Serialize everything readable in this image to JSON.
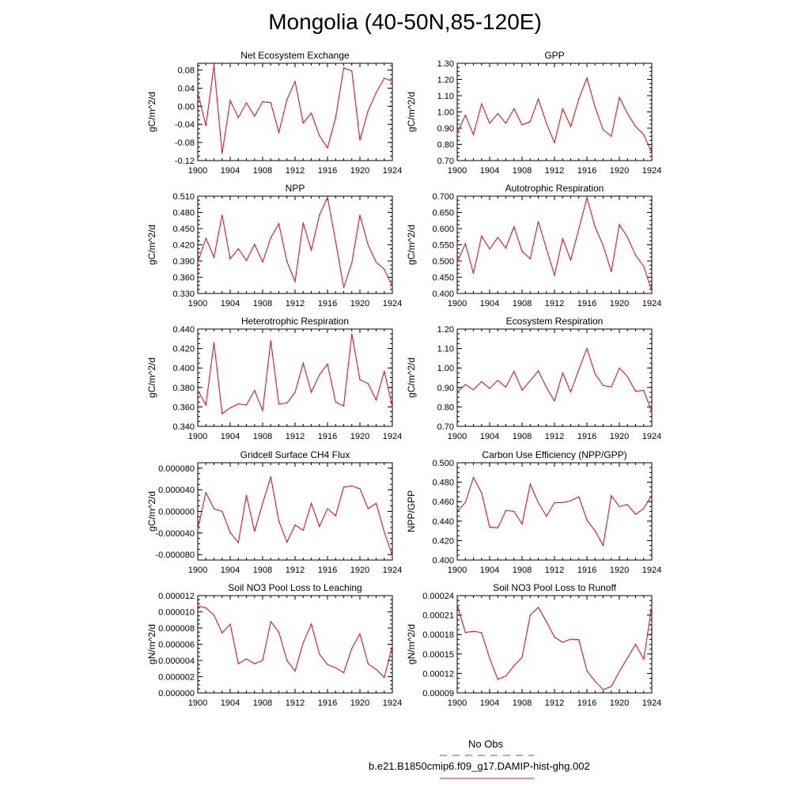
{
  "figure": {
    "title": "Mongolia (40-50N,85-120E)",
    "line_color": "#e8121e",
    "obs_color": "#5555cc"
  },
  "legend": {
    "obs_label": "No Obs",
    "model_label": "b.e21.B1850cmip6.f09_g17.DAMIP-hist-ghg.002"
  },
  "chart_data": [
    {
      "type": "line",
      "title": "Net Ecosystem Exchange",
      "ylabel": "gC/m^2/d",
      "xticks": [
        "1900",
        "1904",
        "1908",
        "1912",
        "1916",
        "1920",
        "1924"
      ],
      "xlim": [
        1900,
        1924
      ],
      "ylim": [
        -0.12,
        0.095
      ],
      "yticks": [
        "0.08",
        "0.04",
        "0.00",
        "-0.04",
        "-0.08",
        "-0.12"
      ],
      "ytick_values": [
        0.08,
        0.04,
        0.0,
        -0.04,
        -0.08,
        -0.12
      ],
      "x": [
        1900,
        1901,
        1902,
        1903,
        1904,
        1905,
        1906,
        1907,
        1908,
        1909,
        1910,
        1911,
        1912,
        1913,
        1914,
        1915,
        1916,
        1917,
        1918,
        1919,
        1920,
        1921,
        1922,
        1923,
        1924
      ],
      "values": [
        0.03,
        -0.043,
        0.09,
        -0.104,
        0.013,
        -0.025,
        0.008,
        -0.022,
        0.01,
        0.008,
        -0.058,
        0.015,
        0.055,
        -0.037,
        -0.015,
        -0.065,
        -0.092,
        -0.025,
        0.085,
        0.078,
        -0.075,
        -0.01,
        0.03,
        0.062,
        0.055
      ]
    },
    {
      "type": "line",
      "title": "GPP",
      "ylabel": "gC/m^2/d",
      "xticks": [
        "1900",
        "1904",
        "1908",
        "1912",
        "1916",
        "1920",
        "1924"
      ],
      "xlim": [
        1900,
        1924
      ],
      "ylim": [
        0.7,
        1.3
      ],
      "yticks": [
        "1.30",
        "1.20",
        "1.10",
        "1.00",
        "0.90",
        "0.80",
        "0.70"
      ],
      "ytick_values": [
        1.3,
        1.2,
        1.1,
        1.0,
        0.9,
        0.8,
        0.7
      ],
      "x": [
        1900,
        1901,
        1902,
        1903,
        1904,
        1905,
        1906,
        1907,
        1908,
        1909,
        1910,
        1911,
        1912,
        1913,
        1914,
        1915,
        1916,
        1917,
        1918,
        1919,
        1920,
        1921,
        1922,
        1923,
        1924
      ],
      "values": [
        0.87,
        0.98,
        0.86,
        1.05,
        0.93,
        0.99,
        0.93,
        1.02,
        0.92,
        0.94,
        1.08,
        0.93,
        0.81,
        1.02,
        0.91,
        1.08,
        1.21,
        1.03,
        0.89,
        0.85,
        1.09,
        0.99,
        0.91,
        0.86,
        0.75
      ]
    },
    {
      "type": "line",
      "title": "NPP",
      "ylabel": "gC/m^2/d",
      "xticks": [
        "1900",
        "1904",
        "1908",
        "1912",
        "1916",
        "1920",
        "1924"
      ],
      "xlim": [
        1900,
        1924
      ],
      "ylim": [
        0.33,
        0.51
      ],
      "yticks": [
        "0.510",
        "0.480",
        "0.450",
        "0.420",
        "0.390",
        "0.360",
        "0.330"
      ],
      "ytick_values": [
        0.51,
        0.48,
        0.45,
        0.42,
        0.39,
        0.36,
        0.33
      ],
      "x": [
        1900,
        1901,
        1902,
        1903,
        1904,
        1905,
        1906,
        1907,
        1908,
        1909,
        1910,
        1911,
        1912,
        1913,
        1914,
        1915,
        1916,
        1917,
        1918,
        1919,
        1920,
        1921,
        1922,
        1923,
        1924
      ],
      "values": [
        0.388,
        0.432,
        0.397,
        0.475,
        0.394,
        0.413,
        0.391,
        0.421,
        0.388,
        0.433,
        0.459,
        0.389,
        0.352,
        0.461,
        0.41,
        0.475,
        0.508,
        0.426,
        0.341,
        0.387,
        0.475,
        0.42,
        0.388,
        0.375,
        0.343
      ]
    },
    {
      "type": "line",
      "title": "Autotrophic Respiration",
      "ylabel": "gC/m^2/d",
      "xticks": [
        "1900",
        "1904",
        "1908",
        "1912",
        "1916",
        "1920",
        "1924"
      ],
      "xlim": [
        1900,
        1924
      ],
      "ylim": [
        0.4,
        0.7
      ],
      "yticks": [
        "0.700",
        "0.650",
        "0.600",
        "0.550",
        "0.500",
        "0.450",
        "0.400"
      ],
      "ytick_values": [
        0.7,
        0.65,
        0.6,
        0.55,
        0.5,
        0.45,
        0.4
      ],
      "x": [
        1900,
        1901,
        1902,
        1903,
        1904,
        1905,
        1906,
        1907,
        1908,
        1909,
        1910,
        1911,
        1912,
        1913,
        1914,
        1915,
        1916,
        1917,
        1918,
        1919,
        1920,
        1921,
        1922,
        1923,
        1924
      ],
      "values": [
        0.496,
        0.554,
        0.462,
        0.577,
        0.537,
        0.573,
        0.54,
        0.606,
        0.53,
        0.507,
        0.622,
        0.538,
        0.456,
        0.569,
        0.503,
        0.6,
        0.695,
        0.605,
        0.548,
        0.467,
        0.613,
        0.573,
        0.518,
        0.484,
        0.407
      ]
    },
    {
      "type": "line",
      "title": "Heterotrophic Respiration",
      "ylabel": "gC/m^2/d",
      "xticks": [
        "1900",
        "1904",
        "1908",
        "1912",
        "1916",
        "1920",
        "1924"
      ],
      "xlim": [
        1900,
        1924
      ],
      "ylim": [
        0.34,
        0.44
      ],
      "yticks": [
        "0.440",
        "0.420",
        "0.400",
        "0.380",
        "0.360",
        "0.340"
      ],
      "ytick_values": [
        0.44,
        0.42,
        0.4,
        0.38,
        0.36,
        0.34
      ],
      "x": [
        1900,
        1901,
        1902,
        1903,
        1904,
        1905,
        1906,
        1907,
        1908,
        1909,
        1910,
        1911,
        1912,
        1913,
        1914,
        1915,
        1916,
        1917,
        1918,
        1919,
        1920,
        1921,
        1922,
        1923,
        1924
      ],
      "values": [
        0.377,
        0.362,
        0.426,
        0.353,
        0.359,
        0.363,
        0.362,
        0.377,
        0.356,
        0.428,
        0.363,
        0.364,
        0.375,
        0.405,
        0.375,
        0.393,
        0.404,
        0.365,
        0.361,
        0.435,
        0.388,
        0.384,
        0.367,
        0.397,
        0.36
      ]
    },
    {
      "type": "line",
      "title": "Ecosystem Respiration",
      "ylabel": "gC/m^2/d",
      "xticks": [
        "1900",
        "1904",
        "1908",
        "1912",
        "1916",
        "1920",
        "1924"
      ],
      "xlim": [
        1900,
        1924
      ],
      "ylim": [
        0.7,
        1.2
      ],
      "yticks": [
        "1.20",
        "1.10",
        "1.00",
        "0.90",
        "0.80",
        "0.70"
      ],
      "ytick_values": [
        1.2,
        1.1,
        1.0,
        0.9,
        0.8,
        0.7
      ],
      "x": [
        1900,
        1901,
        1902,
        1903,
        1904,
        1905,
        1906,
        1907,
        1908,
        1909,
        1910,
        1911,
        1912,
        1913,
        1914,
        1915,
        1916,
        1917,
        1918,
        1919,
        1920,
        1921,
        1922,
        1923,
        1924
      ],
      "values": [
        0.875,
        0.915,
        0.888,
        0.93,
        0.895,
        0.936,
        0.902,
        0.983,
        0.886,
        0.935,
        0.985,
        0.9,
        0.83,
        0.975,
        0.877,
        0.993,
        1.1,
        0.97,
        0.91,
        0.902,
        1.0,
        0.955,
        0.88,
        0.885,
        0.775
      ]
    },
    {
      "type": "line",
      "title": "Gridcell Surface CH4 Flux",
      "ylabel": "gC/m^2/d",
      "xticks": [
        "1900",
        "1904",
        "1908",
        "1912",
        "1916",
        "1920",
        "1924"
      ],
      "xlim": [
        1900,
        1924
      ],
      "ylim": [
        -9e-05,
        9e-05
      ],
      "yticks": [
        "0.000080",
        "0.000040",
        "0.000000",
        "-0.000040",
        "-0.000080"
      ],
      "ytick_values": [
        8e-05,
        4e-05,
        0.0,
        -4e-05,
        -8e-05
      ],
      "x": [
        1900,
        1901,
        1902,
        1903,
        1904,
        1905,
        1906,
        1907,
        1908,
        1909,
        1910,
        1911,
        1912,
        1913,
        1914,
        1915,
        1916,
        1917,
        1918,
        1919,
        1920,
        1921,
        1922,
        1923,
        1924
      ],
      "values": [
        -3.3e-05,
        3.5e-05,
        5e-06,
        0.0,
        -3.9e-05,
        -5.8e-05,
        3e-05,
        -3.7e-05,
        1.5e-05,
        6.4e-05,
        -1.8e-05,
        -5.7e-05,
        -2.5e-05,
        -3.5e-05,
        1.5e-05,
        -2.8e-05,
        5e-06,
        -8e-06,
        4.5e-05,
        4.7e-05,
        4.2e-05,
        5e-06,
        1.5e-05,
        -3.8e-05,
        -8.2e-05
      ]
    },
    {
      "type": "line",
      "title": "Carbon Use Efficiency (NPP/GPP)",
      "ylabel": "NPP/GPP",
      "xticks": [
        "1900",
        "1904",
        "1908",
        "1912",
        "1916",
        "1920",
        "1924"
      ],
      "xlim": [
        1900,
        1924
      ],
      "ylim": [
        0.4,
        0.5
      ],
      "yticks": [
        "0.500",
        "0.480",
        "0.460",
        "0.440",
        "0.420",
        "0.400"
      ],
      "ytick_values": [
        0.5,
        0.48,
        0.46,
        0.44,
        0.42,
        0.4
      ],
      "x": [
        1900,
        1901,
        1902,
        1903,
        1904,
        1905,
        1906,
        1907,
        1908,
        1909,
        1910,
        1911,
        1912,
        1913,
        1914,
        1915,
        1916,
        1917,
        1918,
        1919,
        1920,
        1921,
        1922,
        1923,
        1924
      ],
      "values": [
        0.45,
        0.459,
        0.485,
        0.469,
        0.434,
        0.433,
        0.451,
        0.45,
        0.437,
        0.478,
        0.459,
        0.445,
        0.459,
        0.459,
        0.461,
        0.465,
        0.441,
        0.43,
        0.415,
        0.466,
        0.455,
        0.457,
        0.447,
        0.453,
        0.467
      ]
    },
    {
      "type": "line",
      "title": "Soil NO3 Pool Loss to Leaching",
      "ylabel": "gN/m^2/d",
      "xticks": [
        "1900",
        "1904",
        "1908",
        "1912",
        "1916",
        "1920",
        "1924"
      ],
      "xlim": [
        1900,
        1924
      ],
      "ylim": [
        0.0,
        1.2e-05
      ],
      "yticks": [
        "0.000012",
        "0.000010",
        "0.000008",
        "0.000006",
        "0.000004",
        "0.000002",
        "0.000000"
      ],
      "ytick_values": [
        1.2e-05,
        1e-05,
        8e-06,
        6e-06,
        4e-06,
        2e-06,
        0.0
      ],
      "x": [
        1900,
        1901,
        1902,
        1903,
        1904,
        1905,
        1906,
        1907,
        1908,
        1909,
        1910,
        1911,
        1912,
        1913,
        1914,
        1915,
        1916,
        1917,
        1918,
        1919,
        1920,
        1921,
        1922,
        1923,
        1924
      ],
      "values": [
        1.07e-05,
        1.05e-05,
        9.6e-06,
        7.4e-06,
        8.5e-06,
        3.6e-06,
        4.2e-06,
        3.6e-06,
        4e-06,
        8.8e-06,
        7.5e-06,
        4e-06,
        2.7e-06,
        6.2e-06,
        8.5e-06,
        4.8e-06,
        3.5e-06,
        3.1e-06,
        2.5e-06,
        5.5e-06,
        7.3e-06,
        3.6e-06,
        2.9e-06,
        1.9e-06,
        5.8e-06
      ]
    },
    {
      "type": "line",
      "title": "Soil NO3 Pool Loss to Runoff",
      "ylabel": "gN/m^2/d",
      "xticks": [
        "1900",
        "1904",
        "1908",
        "1912",
        "1916",
        "1920",
        "1924"
      ],
      "xlim": [
        1900,
        1924
      ],
      "ylim": [
        9e-05,
        0.00024
      ],
      "yticks": [
        "0.00024",
        "0.00021",
        "0.00018",
        "0.00015",
        "0.00012",
        "0.00009"
      ],
      "ytick_values": [
        0.00024,
        0.00021,
        0.00018,
        0.00015,
        0.00012,
        9e-05
      ],
      "x": [
        1900,
        1901,
        1902,
        1903,
        1904,
        1905,
        1906,
        1907,
        1908,
        1909,
        1910,
        1911,
        1912,
        1913,
        1914,
        1915,
        1916,
        1917,
        1918,
        1919,
        1920,
        1921,
        1922,
        1923,
        1924
      ],
      "values": [
        0.000226,
        0.000183,
        0.000185,
        0.000183,
        0.000143,
        0.000111,
        0.000116,
        0.000132,
        0.000145,
        0.00021,
        0.000222,
        0.0002,
        0.000176,
        0.000168,
        0.000173,
        0.000172,
        0.000124,
        0.000108,
        9.5e-05,
        0.0001,
        0.000123,
        0.000144,
        0.000165,
        0.000142,
        0.000224
      ]
    }
  ]
}
